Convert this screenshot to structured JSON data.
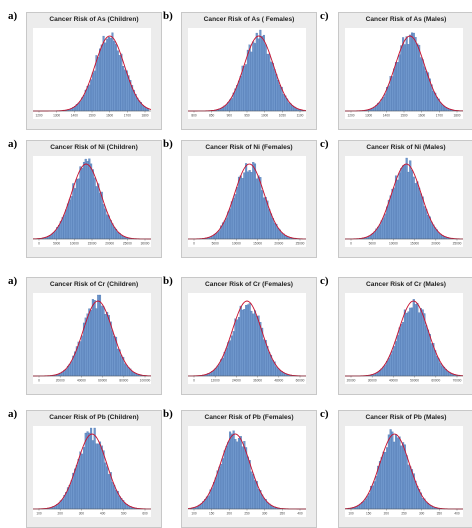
{
  "chart_data": [
    {
      "letter": "a)",
      "title": "Cancer Risk of As (Children)",
      "type": "bar",
      "peak_ratio": 0.65,
      "xticks": [
        "1200",
        "1300",
        "1400",
        "1500",
        "1600",
        "1700",
        "1800"
      ]
    },
    {
      "letter": "b)",
      "title": "Cancer Risk of As ( Females)",
      "type": "bar",
      "peak_ratio": 0.6,
      "xticks": [
        "800",
        "850",
        "900",
        "950",
        "1000",
        "1050",
        "1100"
      ]
    },
    {
      "letter": "c)",
      "title": "Cancer Risk of As (Males)",
      "type": "bar",
      "peak_ratio": 0.55,
      "xticks": [
        "1200",
        "1300",
        "1400",
        "1500",
        "1600",
        "1700",
        "1800"
      ]
    },
    {
      "letter": "a)",
      "title": "Cancer Risk of Ni (Children)",
      "type": "bar",
      "peak_ratio": 0.45,
      "xticks": [
        "0",
        "5000",
        "10000",
        "15000",
        "20000",
        "25000",
        "30000"
      ]
    },
    {
      "letter": "b)",
      "title": "Cancer Risk of Ni (Females)",
      "type": "bar",
      "peak_ratio": 0.52,
      "xticks": [
        "0",
        "5000",
        "10000",
        "15000",
        "20000",
        "25000"
      ]
    },
    {
      "letter": "c)",
      "title": "Cancer Risk of Ni (Males)",
      "type": "bar",
      "peak_ratio": 0.52,
      "xticks": [
        "0",
        "5000",
        "10000",
        "15000",
        "20000",
        "25000"
      ]
    },
    {
      "letter": "a)",
      "title": "Cancer Risk of Cr (Children)",
      "type": "bar",
      "peak_ratio": 0.55,
      "xticks": [
        "0",
        "20000",
        "40000",
        "60000",
        "80000",
        "100000"
      ]
    },
    {
      "letter": "b)",
      "title": "Cancer Risk of Cr (Females)",
      "type": "bar",
      "peak_ratio": 0.5,
      "xticks": [
        "0",
        "12000",
        "24000",
        "36000",
        "48000",
        "60000"
      ]
    },
    {
      "letter": "c)",
      "title": "Cancer Risk of Cr (Males)",
      "type": "bar",
      "peak_ratio": 0.58,
      "xticks": [
        "20000",
        "30000",
        "40000",
        "50000",
        "60000",
        "70000"
      ]
    },
    {
      "letter": "a)",
      "title": "Cancer Risk of Pb (Children)",
      "type": "bar",
      "peak_ratio": 0.5,
      "xticks": [
        "100",
        "200",
        "300",
        "400",
        "500",
        "600"
      ]
    },
    {
      "letter": "b)",
      "title": "Cancer Risk of Pb (Females)",
      "type": "bar",
      "peak_ratio": 0.4,
      "xticks": [
        "100",
        "150",
        "200",
        "250",
        "300",
        "350",
        "400"
      ]
    },
    {
      "letter": "c)",
      "title": "Cancer Risk of Pb (Males)",
      "type": "bar",
      "peak_ratio": 0.42,
      "xticks": [
        "100",
        "150",
        "200",
        "250",
        "300",
        "350",
        "400"
      ]
    }
  ],
  "colors": {
    "bar": "#6f97cc",
    "bar_edge": "#3f68a6",
    "curve": "#c8102e",
    "frame": "#ececec"
  }
}
